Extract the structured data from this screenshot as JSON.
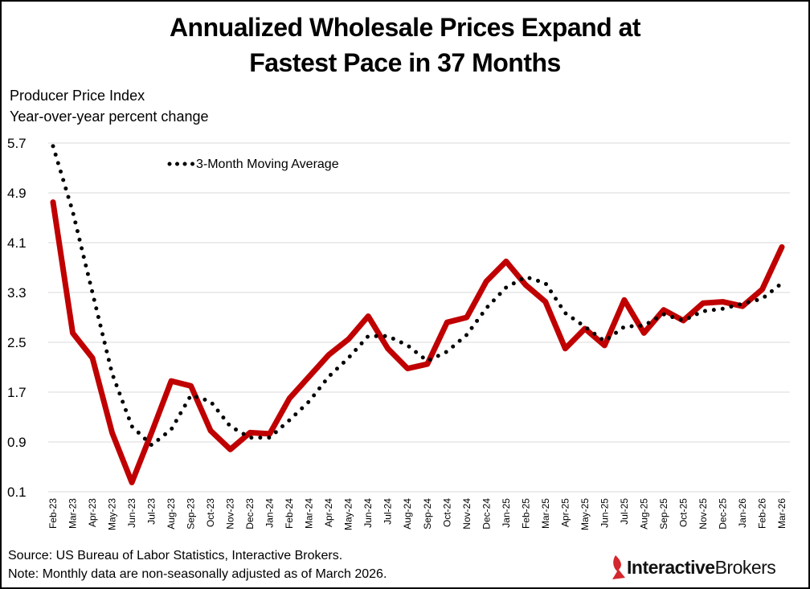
{
  "title_line1": "Annualized Wholesale Prices Expand at",
  "title_line2": "Fastest Pace in 37 Months",
  "ylabel_line1": "Producer Price Index",
  "ylabel_line2": "Year-over-year percent change",
  "footer": {
    "source": "Source: US Bureau of Labor Statistics, Interactive Brokers.",
    "note": "Note: Monthly data are non-seasonally adjusted as of March 2026."
  },
  "logo": {
    "part1": "Interactive",
    "part2": "Brokers",
    "accent": "#d3282d"
  },
  "colors": {
    "series": "#c00000",
    "moving_average": "#000000",
    "grid": "#d9d9d9"
  },
  "chart_data": {
    "type": "line",
    "x": [
      "Feb-23",
      "Mar-23",
      "Apr-23",
      "May-23",
      "Jun-23",
      "Jul-23",
      "Aug-23",
      "Sep-23",
      "Oct-23",
      "Nov-23",
      "Dec-23",
      "Jan-24",
      "Feb-24",
      "Mar-24",
      "Apr-24",
      "May-24",
      "Jun-24",
      "Jul-24",
      "Aug-24",
      "Sep-24",
      "Oct-24",
      "Nov-24",
      "Dec-24",
      "Jan-25",
      "Feb-25",
      "Mar-25",
      "Apr-25",
      "May-25",
      "Jun-25",
      "Jul-25",
      "Aug-25",
      "Sep-25",
      "Oct-25",
      "Nov-25",
      "Dec-25",
      "Jan-26",
      "Feb-26",
      "Mar-26"
    ],
    "series": [
      {
        "name": "",
        "style": "solid",
        "values": [
          4.75,
          2.65,
          2.25,
          1.05,
          0.25,
          1.05,
          1.88,
          1.8,
          1.08,
          0.78,
          1.05,
          1.03,
          1.6,
          1.95,
          2.3,
          2.55,
          2.92,
          2.4,
          2.08,
          2.15,
          2.82,
          2.9,
          3.48,
          3.8,
          3.42,
          3.15,
          2.4,
          2.72,
          2.45,
          3.18,
          2.65,
          3.02,
          2.85,
          3.13,
          3.15,
          3.08,
          3.35,
          4.03
        ]
      },
      {
        "name": "3-Month Moving Average",
        "style": "dotted",
        "values": [
          5.65,
          4.6,
          3.3,
          2.0,
          1.15,
          0.85,
          1.1,
          1.65,
          1.55,
          1.15,
          0.97,
          0.97,
          1.25,
          1.55,
          1.95,
          2.25,
          2.6,
          2.6,
          2.45,
          2.2,
          2.35,
          2.62,
          3.05,
          3.38,
          3.55,
          3.45,
          2.97,
          2.75,
          2.52,
          2.75,
          2.77,
          2.95,
          2.85,
          3.0,
          3.04,
          3.12,
          3.2,
          3.45
        ]
      }
    ],
    "yticks": [
      "0.1",
      "0.9",
      "1.7",
      "2.5",
      "3.3",
      "4.1",
      "4.9",
      "5.7"
    ],
    "ylim": [
      0.1,
      5.7
    ],
    "grid": true,
    "legend_placement": "top-left"
  }
}
